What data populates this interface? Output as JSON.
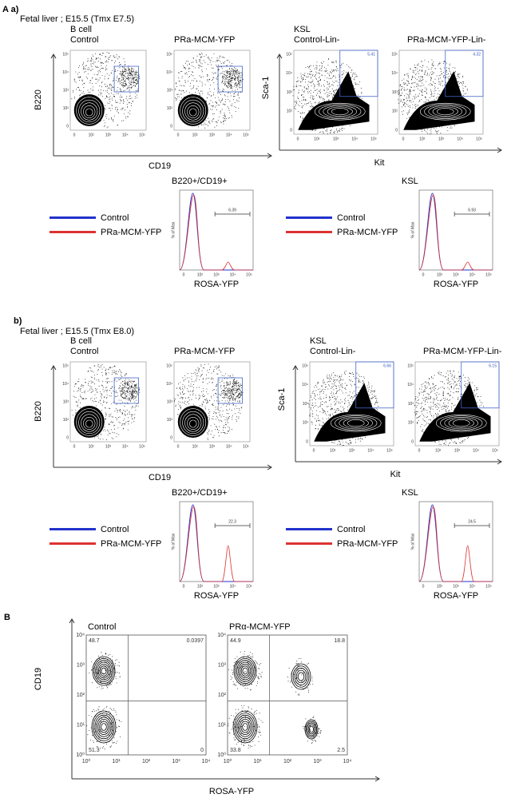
{
  "sections": [
    {
      "label": "A a)",
      "subtitle": "Fetal liver ; E15.5 (Tmx E7.5)",
      "bcell": {
        "title": "B cell",
        "plots": [
          "Control",
          "PRa-MCM-YFP"
        ],
        "y_axis": "B220",
        "x_axis": "CD19"
      },
      "ksl": {
        "title": "KSL",
        "plots": [
          {
            "name": "Control-Lin-",
            "gate": "5.41"
          },
          {
            "name": "PRa-MCM-YFP-Lin-",
            "gate": "4.32"
          }
        ],
        "y_axis": "Sca-1",
        "x_axis": "Kit"
      },
      "histograms": [
        {
          "title": "B220+/CD19+",
          "gate": "6.39"
        },
        {
          "title": "KSL",
          "gate": "6.93"
        }
      ],
      "hist_x_axis": "ROSA-YFP",
      "hist_y_axis": "% of Max",
      "legend": [
        "Control",
        "PRa-MCM-YFP"
      ]
    },
    {
      "label": "b)",
      "subtitle": "Fetal liver ; E15.5 (Tmx E8.0)",
      "bcell": {
        "title": "B cell",
        "plots": [
          "Control",
          "PRa-MCM-YFP"
        ],
        "y_axis": "B220",
        "x_axis": "CD19"
      },
      "ksl": {
        "title": "KSL",
        "plots": [
          {
            "name": "Control-Lin-",
            "gate": "6.66"
          },
          {
            "name": "PRa-MCM-YFP-Lin-",
            "gate": "6.15"
          }
        ],
        "y_axis": "Sca-1",
        "x_axis": "Kit"
      },
      "histograms": [
        {
          "title": "B220+/CD19+",
          "gate": "22.3"
        },
        {
          "title": "KSL",
          "gate": "24.5"
        }
      ],
      "hist_x_axis": "ROSA-YFP",
      "hist_y_axis": "% of Max",
      "legend": [
        "Control",
        "PRa-MCM-YFP"
      ]
    }
  ],
  "panel_B": {
    "label": "B",
    "y_axis": "CD19",
    "x_axis": "ROSA-YFP",
    "plots": [
      {
        "name": "Control",
        "quadrants": [
          "48.7",
          "0.0397",
          "51.3",
          "0"
        ]
      },
      {
        "name": "PRα-MCM-YFP",
        "quadrants": [
          "44.9",
          "18.8",
          "33.8",
          "2.5"
        ]
      }
    ]
  },
  "ticks": [
    "0",
    "10²",
    "10³",
    "10⁴",
    "10⁵"
  ],
  "log_ticks": [
    "10⁰",
    "10¹",
    "10²",
    "10³",
    "10⁴"
  ]
}
